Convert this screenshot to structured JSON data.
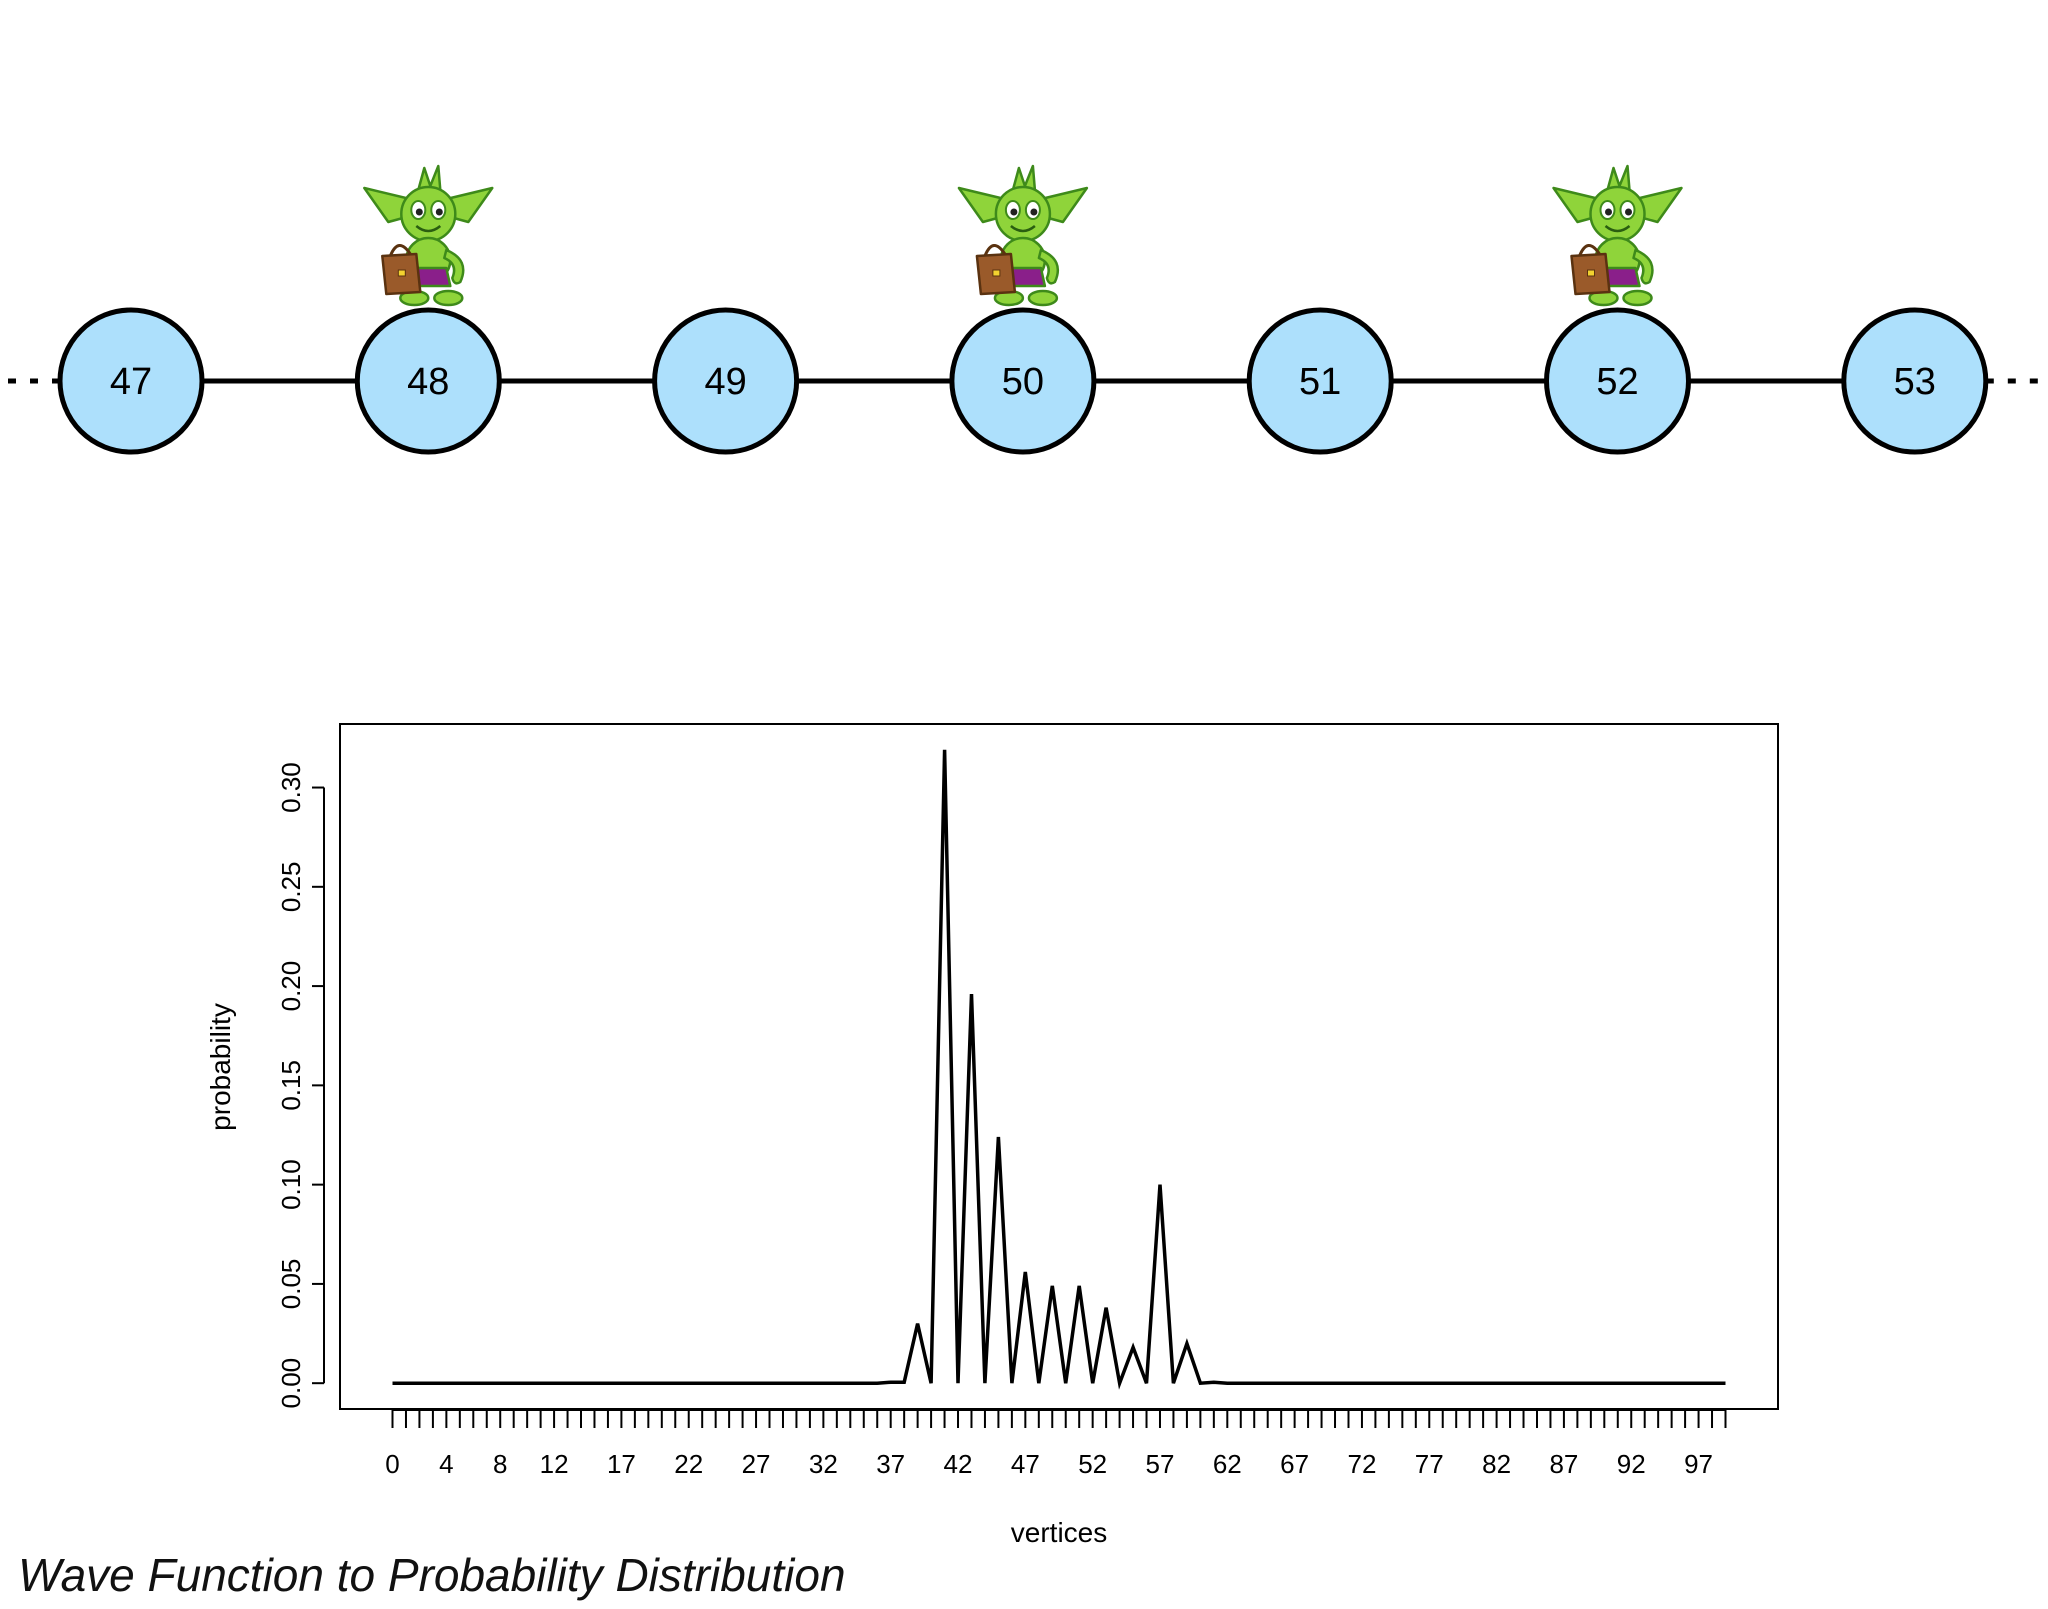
{
  "graph": {
    "vertices": [
      {
        "label": "47",
        "has_goblin": false
      },
      {
        "label": "48",
        "has_goblin": true
      },
      {
        "label": "49",
        "has_goblin": false
      },
      {
        "label": "50",
        "has_goblin": true
      },
      {
        "label": "51",
        "has_goblin": false
      },
      {
        "label": "52",
        "has_goblin": true
      },
      {
        "label": "53",
        "has_goblin": false
      }
    ],
    "vertex_fill": "#ade0fc",
    "edge_color": "#000000",
    "goblin_colors": {
      "skin": "#8fd43a",
      "outline": "#3e8a1a",
      "shorts": "#8a1f8a",
      "bag": "#9a5a2a"
    }
  },
  "chart_data": {
    "type": "line",
    "xlabel": "vertices",
    "ylabel": "probability",
    "x": [
      0,
      1,
      2,
      3,
      4,
      5,
      6,
      7,
      8,
      9,
      10,
      11,
      12,
      13,
      14,
      15,
      16,
      17,
      18,
      19,
      20,
      21,
      22,
      23,
      24,
      25,
      26,
      27,
      28,
      29,
      30,
      31,
      32,
      33,
      34,
      35,
      36,
      37,
      38,
      39,
      40,
      41,
      42,
      43,
      44,
      45,
      46,
      47,
      48,
      49,
      50,
      51,
      52,
      53,
      54,
      55,
      56,
      57,
      58,
      59,
      60,
      61,
      62,
      63,
      64,
      65,
      66,
      67,
      68,
      69,
      70,
      71,
      72,
      73,
      74,
      75,
      76,
      77,
      78,
      79,
      80,
      81,
      82,
      83,
      84,
      85,
      86,
      87,
      88,
      89,
      90,
      91,
      92,
      93,
      94,
      95,
      96,
      97,
      98,
      99
    ],
    "y": [
      0,
      0,
      0,
      0,
      0,
      0,
      0,
      0,
      0,
      0,
      0,
      0,
      0,
      0,
      0,
      0,
      0,
      0,
      0,
      0,
      0,
      0,
      0,
      0,
      0,
      0,
      0,
      0,
      0,
      0,
      0,
      0,
      0,
      0,
      0,
      0,
      0,
      0.0005,
      0.0005,
      0.03,
      0,
      0.319,
      0,
      0.196,
      0,
      0.124,
      0,
      0.056,
      0,
      0.049,
      0,
      0.049,
      0,
      0.038,
      0,
      0.018,
      0,
      0.1,
      0,
      0.02,
      0,
      0.0005,
      0,
      0,
      0,
      0,
      0,
      0,
      0,
      0,
      0,
      0,
      0,
      0,
      0,
      0,
      0,
      0,
      0,
      0,
      0,
      0,
      0,
      0,
      0,
      0,
      0,
      0,
      0,
      0,
      0,
      0,
      0,
      0,
      0,
      0,
      0,
      0,
      0,
      0
    ],
    "xticks": [
      0,
      1,
      2,
      3,
      4,
      5,
      6,
      7,
      8,
      9,
      10,
      11,
      12,
      13,
      14,
      15,
      16,
      17,
      18,
      19,
      20,
      21,
      22,
      23,
      24,
      25,
      26,
      27,
      28,
      29,
      30,
      31,
      32,
      33,
      34,
      35,
      36,
      37,
      38,
      39,
      40,
      41,
      42,
      43,
      44,
      45,
      46,
      47,
      48,
      49,
      50,
      51,
      52,
      53,
      54,
      55,
      56,
      57,
      58,
      59,
      60,
      61,
      62,
      63,
      64,
      65,
      66,
      67,
      68,
      69,
      70,
      71,
      72,
      73,
      74,
      75,
      76,
      77,
      78,
      79,
      80,
      81,
      82,
      83,
      84,
      85,
      86,
      87,
      88,
      89,
      90,
      91,
      92,
      93,
      94,
      95,
      96,
      97,
      98,
      99
    ],
    "xtick_labels_shown": [
      0,
      4,
      8,
      12,
      17,
      22,
      27,
      32,
      37,
      42,
      47,
      52,
      57,
      62,
      67,
      72,
      77,
      82,
      87,
      92,
      97
    ],
    "yticks": [
      "0.00",
      "0.05",
      "0.10",
      "0.15",
      "0.20",
      "0.25",
      "0.30"
    ],
    "xlim": [
      -3.9,
      102.9
    ],
    "ylim": [
      -0.013,
      0.332
    ],
    "grid": false,
    "line_color": "#000000"
  },
  "caption": "Wave Function to Probability Distribution"
}
